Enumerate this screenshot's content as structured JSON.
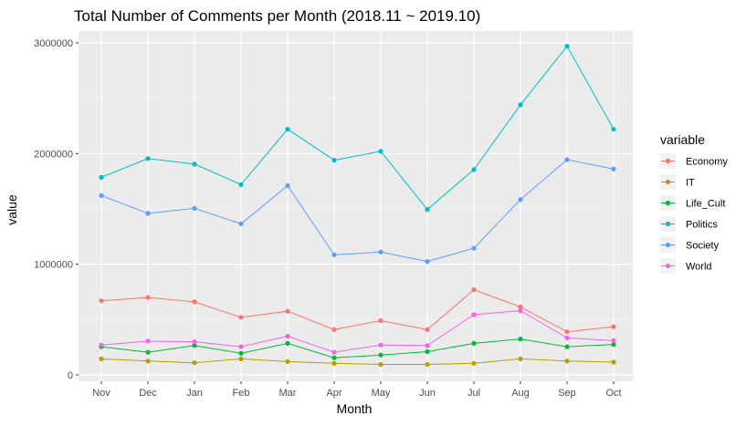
{
  "chart_data": {
    "type": "line",
    "title": "Total Number of Comments per Month (2018.11 ~ 2019.10)",
    "xlabel": "Month",
    "ylabel": "value",
    "categories": [
      "Nov",
      "Dec",
      "Jan",
      "Feb",
      "Mar",
      "Apr",
      "May",
      "Jun",
      "Jul",
      "Aug",
      "Sep",
      "Oct"
    ],
    "ylim": [
      0,
      3100000
    ],
    "yticks": [
      0,
      1000000,
      2000000,
      3000000
    ],
    "ytick_labels": [
      "0",
      "1000000",
      "2000000",
      "3000000"
    ],
    "grid": true,
    "legend_title": "variable",
    "legend_position": "right",
    "series": [
      {
        "name": "Economy",
        "color": "#F8766D",
        "values": [
          670000,
          700000,
          660000,
          520000,
          575000,
          410000,
          490000,
          410000,
          770000,
          615000,
          390000,
          435000
        ]
      },
      {
        "name": "IT",
        "color": "#B79F00",
        "values": [
          145000,
          125000,
          110000,
          145000,
          120000,
          105000,
          95000,
          95000,
          105000,
          145000,
          125000,
          115000
        ]
      },
      {
        "name": "Life_Cult",
        "color": "#00BA38",
        "values": [
          255000,
          205000,
          265000,
          195000,
          285000,
          155000,
          180000,
          210000,
          285000,
          325000,
          255000,
          275000
        ]
      },
      {
        "name": "Politics",
        "color": "#00BFC4",
        "values": [
          1785000,
          1955000,
          1905000,
          1720000,
          2220000,
          1940000,
          2020000,
          1495000,
          1855000,
          2440000,
          2970000,
          2220000
        ]
      },
      {
        "name": "Society",
        "color": "#619CFF",
        "values": [
          1620000,
          1460000,
          1505000,
          1365000,
          1710000,
          1085000,
          1110000,
          1025000,
          1145000,
          1585000,
          1945000,
          1860000
        ]
      },
      {
        "name": "World",
        "color": "#F564E3",
        "values": [
          270000,
          305000,
          300000,
          255000,
          350000,
          205000,
          270000,
          265000,
          545000,
          580000,
          335000,
          310000
        ]
      }
    ]
  }
}
